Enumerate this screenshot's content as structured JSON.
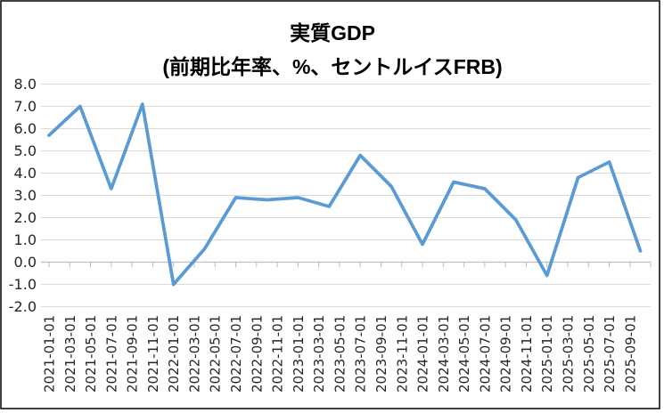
{
  "chart_data": {
    "type": "line",
    "title": "実質GDP",
    "subtitle": "(前期比年率、%、セントルイスFRB)",
    "series": [
      {
        "name": "実質GDP（前期比年率）",
        "x": [
          "2021-01-01",
          "2021-04-01",
          "2021-07-01",
          "2021-10-01",
          "2022-01-01",
          "2022-04-01",
          "2022-07-01",
          "2022-10-01",
          "2023-01-01",
          "2023-04-01",
          "2023-07-01",
          "2023-10-01",
          "2024-01-01",
          "2024-04-01",
          "2024-07-01",
          "2024-10-01",
          "2025-01-01",
          "2025-04-01",
          "2025-07-01",
          "2025-10-01"
        ],
        "values": [
          5.7,
          7.0,
          3.3,
          7.1,
          -1.0,
          0.6,
          2.9,
          2.8,
          2.9,
          2.5,
          4.8,
          3.4,
          0.8,
          3.6,
          3.3,
          1.9,
          -0.6,
          3.8,
          4.5,
          0.5
        ]
      }
    ],
    "x_tick_labels": [
      "2021-01-01",
      "2021-03-01",
      "2021-05-01",
      "2021-07-01",
      "2021-09-01",
      "2021-11-01",
      "2022-01-01",
      "2022-03-01",
      "2022-05-01",
      "2022-07-01",
      "2022-09-01",
      "2022-11-01",
      "2023-01-01",
      "2023-03-01",
      "2023-05-01",
      "2023-07-01",
      "2023-09-01",
      "2023-11-01",
      "2024-01-01",
      "2024-03-01",
      "2024-05-01",
      "2024-07-01",
      "2024-09-01",
      "2024-11-01",
      "2025-01-01",
      "2025-03-01",
      "2025-05-01",
      "2025-07-01",
      "2025-09-01"
    ],
    "y_tick_labels": [
      "8.0",
      "7.0",
      "6.0",
      "5.0",
      "4.0",
      "3.0",
      "2.0",
      "1.0",
      "0.0",
      "-1.0",
      "-2.0"
    ],
    "ylim": [
      -2.0,
      8.0
    ],
    "y_tick_step": 1.0,
    "grid": "horizontal",
    "legend": "none"
  },
  "colors": {
    "line": "#5B9BD5",
    "gridline": "#D9D9D9",
    "axis_line": "#BFBFBF",
    "tick_label": "#262626",
    "title": "#000000",
    "frame_border": "#000000",
    "background": "#FFFFFF"
  }
}
